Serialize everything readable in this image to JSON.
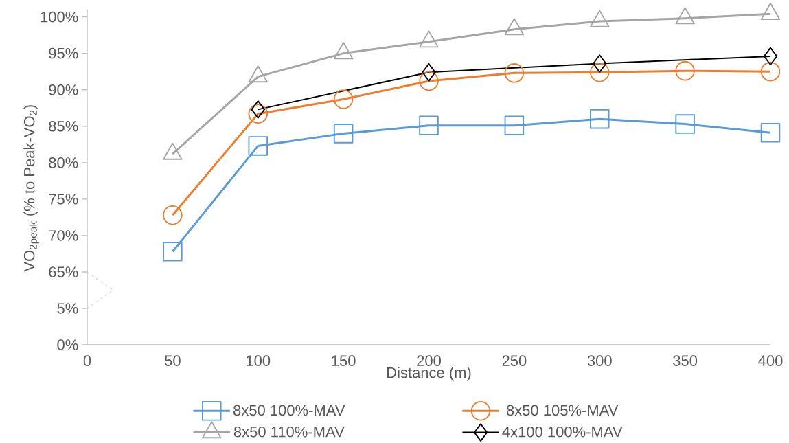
{
  "chart_data": [
    {
      "type": "line",
      "ylabel": "VO$_{2peak}$ (% to Peak-VO$_{2}$)",
      "x": [
        50,
        100,
        150,
        200,
        250,
        300,
        350,
        400
      ],
      "xlim": [
        0,
        400
      ],
      "ylim": [
        65,
        101
      ],
      "yticks": [
        {
          "value": 65,
          "label": "65%"
        },
        {
          "value": 70,
          "label": "70%"
        },
        {
          "value": 75,
          "label": "75%"
        },
        {
          "value": 80,
          "label": "80%"
        },
        {
          "value": 85,
          "label": "85%"
        },
        {
          "value": 90,
          "label": "90%"
        },
        {
          "value": 95,
          "label": "95%"
        },
        {
          "value": 100,
          "label": "100%"
        }
      ],
      "tick_labels": "y",
      "legend": "bottom",
      "line_style": "solid",
      "series": [
        {
          "name": "8x50 100%-MAV",
          "color": "#5b9bd5",
          "marker": "square",
          "values": [
            67.8,
            82.3,
            84.0,
            85.1,
            85.1,
            86.0,
            85.3,
            84.1
          ]
        },
        {
          "name": "8x50 105%-MAV",
          "color": "#ed7d31",
          "marker": "circle",
          "values": [
            72.8,
            86.7,
            88.7,
            91.2,
            92.3,
            92.4,
            92.6,
            92.5
          ]
        },
        {
          "name": "8x50 110%-MAV",
          "color": "#a5a5a5",
          "marker": "triangle",
          "values": [
            81.2,
            91.8,
            95.0,
            96.6,
            98.3,
            99.4,
            99.8,
            100.4
          ]
        },
        {
          "name": "4x100 100%-MAV",
          "color": "#000000",
          "marker": "diamond",
          "x": [
            100,
            200,
            300,
            400
          ],
          "values": [
            87.3,
            92.4,
            93.6,
            94.6
          ]
        }
      ]
    },
    {
      "type": "line",
      "xlabel": "Distance (m)",
      "xlim": [
        0,
        400
      ],
      "xticks": [
        0,
        50,
        100,
        150,
        200,
        250,
        300,
        350,
        400
      ],
      "ylim": [
        0,
        5
      ],
      "yticks": [
        {
          "value": 0,
          "label": "0%"
        },
        {
          "value": 5,
          "label": "5%"
        }
      ]
    }
  ]
}
